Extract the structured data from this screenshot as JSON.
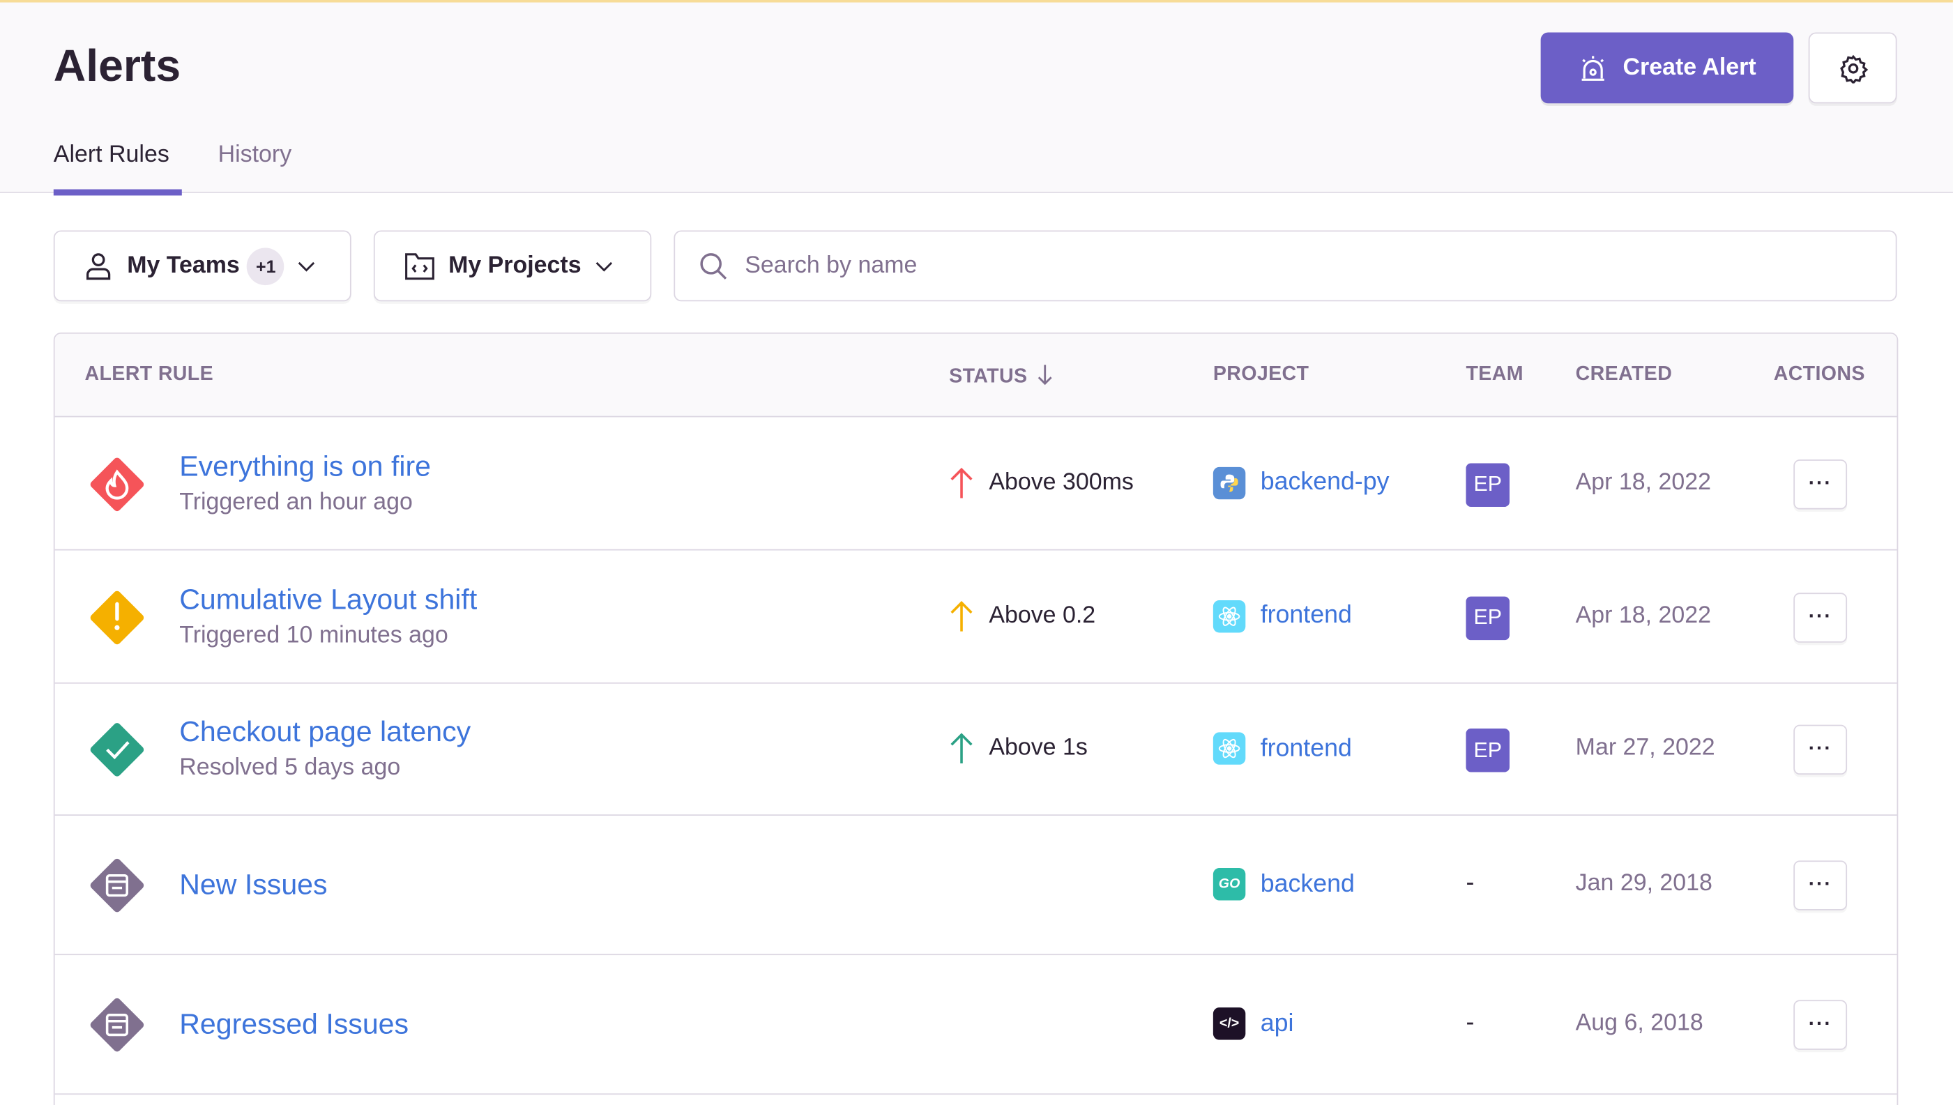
{
  "header": {
    "title": "Alerts",
    "create_label": "Create Alert",
    "accent": "#6c5fc7"
  },
  "tabs": [
    {
      "label": "Alert Rules",
      "active": true
    },
    {
      "label": "History",
      "active": false
    }
  ],
  "filters": {
    "teams_label": "My Teams",
    "teams_badge": "+1",
    "projects_label": "My Projects",
    "search_placeholder": "Search by name"
  },
  "table": {
    "columns": [
      "ALERT RULE",
      "STATUS",
      "PROJECT",
      "TEAM",
      "CREATED",
      "ACTIONS"
    ],
    "sort_icon": "arrow-down-icon",
    "rows": [
      {
        "name": "Everything is on fire",
        "sub": "Triggered an hour ago",
        "icon": "fire-icon",
        "color": "#f55459",
        "status": "Above 300ms",
        "status_color": "#f55459",
        "project": "backend-py",
        "project_icon": "python-icon",
        "team": "EP",
        "created": "Apr 18, 2022",
        "actions": "···"
      },
      {
        "name": "Cumulative Layout shift",
        "sub": "Triggered 10 minutes ago",
        "icon": "exclamation-icon",
        "color": "#f5b000",
        "status": "Above 0.2",
        "status_color": "#f5b000",
        "project": "frontend",
        "project_icon": "react-icon",
        "team": "EP",
        "created": "Apr 18, 2022",
        "actions": "···"
      },
      {
        "name": "Checkout page latency",
        "sub": "Resolved 5 days ago",
        "icon": "checkmark-icon",
        "color": "#2ba185",
        "status": "Above 1s",
        "status_color": "#2ba185",
        "project": "frontend",
        "project_icon": "react-icon",
        "team": "EP",
        "created": "Mar 27, 2022",
        "actions": "···"
      },
      {
        "name": "New Issues",
        "sub": "",
        "icon": "issues-icon",
        "color": "#80708f",
        "status": "",
        "project": "backend",
        "project_icon": "go-icon",
        "team": "-",
        "created": "Jan 29, 2018",
        "actions": "···"
      },
      {
        "name": "Regressed Issues",
        "sub": "",
        "icon": "issues-icon",
        "color": "#80708f",
        "status": "",
        "project": "api",
        "project_icon": "code-icon",
        "team": "-",
        "created": "Aug 6, 2018",
        "actions": "···"
      }
    ]
  }
}
